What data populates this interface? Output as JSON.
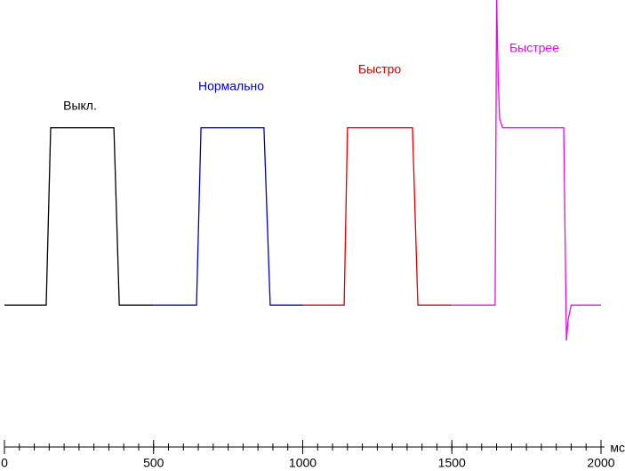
{
  "chart_data": {
    "type": "line",
    "x_label": "мс",
    "xlim": [
      0,
      2000
    ],
    "xticks": [
      0,
      500,
      1000,
      1500,
      2000
    ],
    "xminorticks": [
      0,
      50,
      100,
      150,
      200,
      250,
      300,
      350,
      400,
      450,
      500,
      550,
      600,
      650,
      700,
      750,
      800,
      850,
      900,
      950,
      1000,
      1050,
      1100,
      1150,
      1200,
      1250,
      1300,
      1350,
      1400,
      1450,
      1500,
      1550,
      1600,
      1650,
      1700,
      1750,
      1800,
      1850,
      1900,
      1950,
      2000
    ],
    "ylim": [
      -80,
      172
    ],
    "series": [
      {
        "name": "Выкл.",
        "color": "#000000",
        "x": [
          0,
          140,
          155,
          367,
          385,
          500
        ],
        "values": [
          0,
          0,
          100,
          100,
          0,
          0
        ]
      },
      {
        "name": "Нормально",
        "color": "#0000c0",
        "x": [
          500,
          644,
          659,
          870,
          891,
          1000
        ],
        "values": [
          0,
          0,
          100,
          100,
          0,
          0
        ]
      },
      {
        "name": "Быстро",
        "color": "#e00000",
        "x": [
          1000,
          1139,
          1150,
          1368,
          1386,
          1500
        ],
        "values": [
          0,
          0,
          100,
          100,
          0,
          0
        ]
      },
      {
        "name": "Быстрее",
        "color": "#e010e0",
        "x": [
          1500,
          1645,
          1650,
          1655,
          1660,
          1670,
          1875,
          1884,
          1890,
          1900,
          2000
        ],
        "values": [
          0,
          0,
          175,
          130,
          105,
          100,
          100,
          -20,
          -8,
          0,
          0
        ]
      }
    ]
  }
}
